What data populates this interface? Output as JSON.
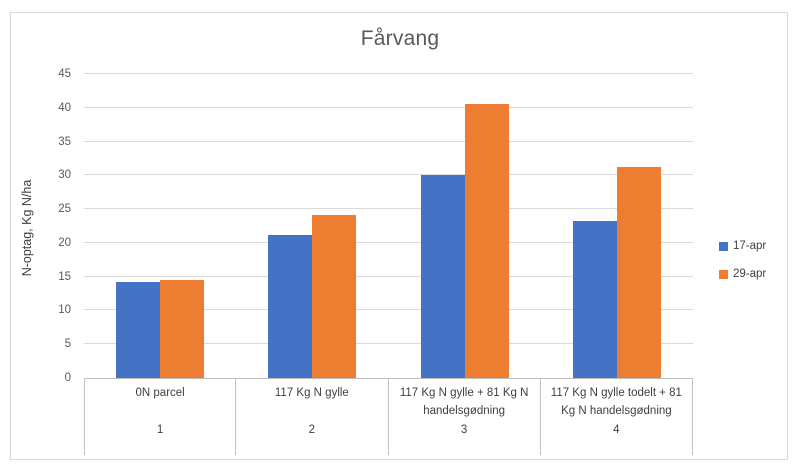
{
  "figure": {
    "title": "Fårvang"
  },
  "chart_data": {
    "type": "bar",
    "title": "Fårvang",
    "xlabel": "",
    "ylabel": "N-optag, Kg N/ha",
    "ylim": [
      0,
      45
    ],
    "ytick_step": 5,
    "grid": true,
    "legend_position": "right",
    "categories": [
      "0N parcel",
      "117 Kg N gylle",
      "117 Kg N gylle + 81 Kg N handelsgødning",
      "117 Kg N gylle todelt + 81 Kg N handelsgødning"
    ],
    "category_numbers": [
      "1",
      "2",
      "3",
      "4"
    ],
    "series": [
      {
        "name": "17-apr",
        "color": "#4472C4",
        "values": [
          14.2,
          21.2,
          30.1,
          23.2
        ]
      },
      {
        "name": "29-apr",
        "color": "#ED7D31",
        "values": [
          14.5,
          24.2,
          40.5,
          31.3
        ]
      }
    ],
    "colors": {
      "gridline": "#d9d9d9",
      "axis_line": "#bfbfbf",
      "title_text": "#595959",
      "tick_text": "#595959",
      "label_text": "#404040"
    }
  }
}
